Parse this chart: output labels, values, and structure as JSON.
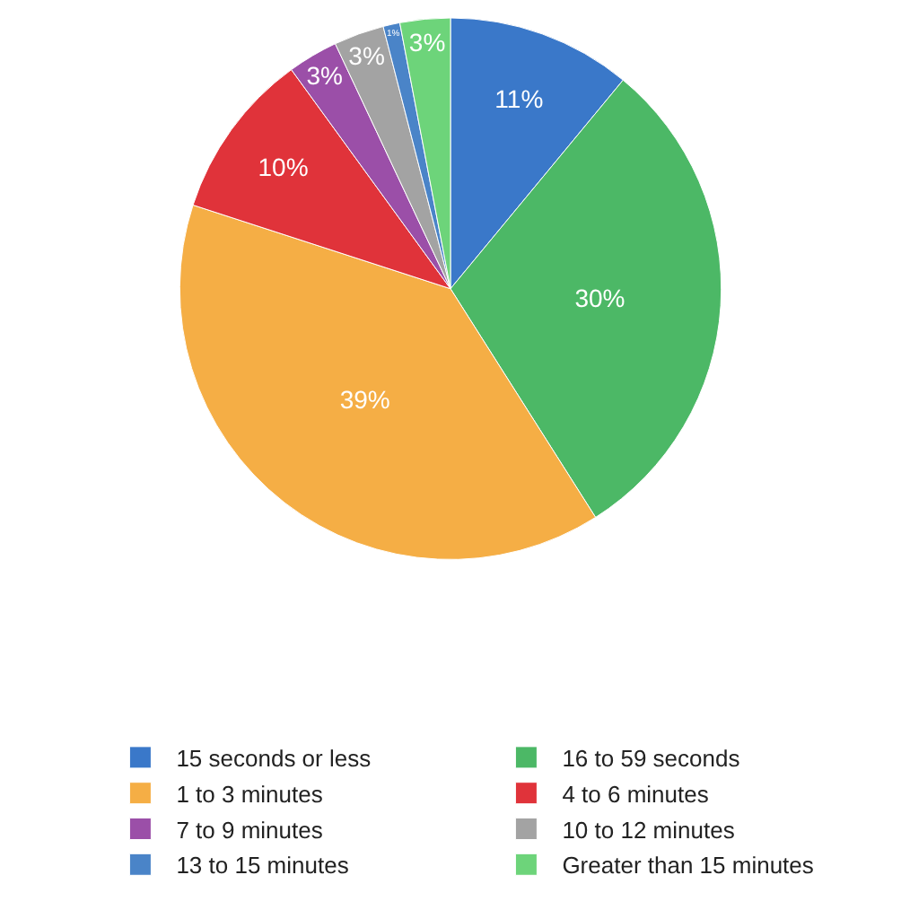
{
  "chart_data": {
    "type": "pie",
    "categories": [
      "15 seconds or less",
      "16 to 59 seconds",
      "1 to 3 minutes",
      "4 to 6 minutes",
      "7 to 9 minutes",
      "10 to 12 minutes",
      "13 to 15 minutes",
      "Greater than 15 minutes"
    ],
    "values": [
      11,
      30,
      39,
      10,
      3,
      3,
      1,
      3
    ],
    "colors": [
      "#3a78c9",
      "#4cb866",
      "#f5ae45",
      "#e0333a",
      "#9b4fa8",
      "#a3a3a3",
      "#4a84c8",
      "#6dd47a"
    ],
    "value_labels": [
      "11%",
      "30%",
      "39%",
      "10%",
      "3%",
      "3%",
      "1%",
      "3%"
    ],
    "legend": "bottom"
  }
}
